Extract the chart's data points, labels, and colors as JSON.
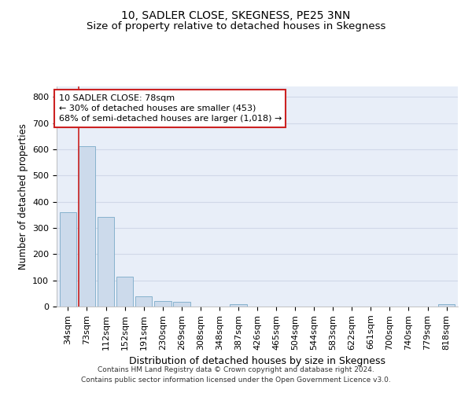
{
  "title": "10, SADLER CLOSE, SKEGNESS, PE25 3NN",
  "subtitle": "Size of property relative to detached houses in Skegness",
  "xlabel": "Distribution of detached houses by size in Skegness",
  "ylabel": "Number of detached properties",
  "bar_labels": [
    "34sqm",
    "73sqm",
    "112sqm",
    "152sqm",
    "191sqm",
    "230sqm",
    "269sqm",
    "308sqm",
    "348sqm",
    "387sqm",
    "426sqm",
    "465sqm",
    "504sqm",
    "544sqm",
    "583sqm",
    "622sqm",
    "661sqm",
    "700sqm",
    "740sqm",
    "779sqm",
    "818sqm"
  ],
  "bar_values": [
    360,
    612,
    343,
    115,
    40,
    22,
    17,
    0,
    0,
    8,
    0,
    0,
    0,
    0,
    0,
    0,
    0,
    0,
    0,
    0,
    8
  ],
  "bar_color": "#ccdaeb",
  "bar_edge_color": "#7aaac8",
  "grid_color": "#d0d8e8",
  "bg_color": "#e8eef8",
  "vline_color": "#cc2222",
  "annotation_text": "10 SADLER CLOSE: 78sqm\n← 30% of detached houses are smaller (453)\n68% of semi-detached houses are larger (1,018) →",
  "annotation_box_facecolor": "#ffffff",
  "annotation_box_edgecolor": "#cc2222",
  "ylim": [
    0,
    840
  ],
  "yticks": [
    0,
    100,
    200,
    300,
    400,
    500,
    600,
    700,
    800
  ],
  "footer_text": "Contains HM Land Registry data © Crown copyright and database right 2024.\nContains public sector information licensed under the Open Government Licence v3.0.",
  "title_fontsize": 10,
  "subtitle_fontsize": 9.5,
  "xlabel_fontsize": 9,
  "ylabel_fontsize": 8.5,
  "tick_fontsize": 8,
  "annot_fontsize": 8,
  "footer_fontsize": 6.5
}
